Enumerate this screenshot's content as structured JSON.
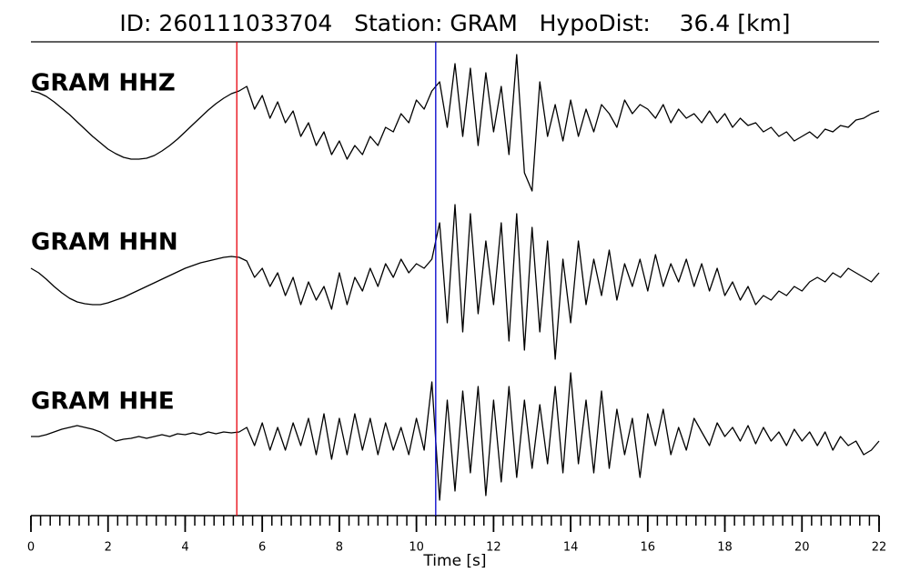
{
  "chart_data": {
    "type": "line",
    "title": "ID: 260111033704   Station: GRAM   HypoDist:    36.4 [km]",
    "x_label": "Time [s]",
    "xlim": [
      0,
      22
    ],
    "xticks": [
      0,
      2,
      4,
      6,
      8,
      10,
      12,
      14,
      16,
      18,
      20,
      22
    ],
    "xminor_step": 0.25,
    "trace_ylim": [
      -100,
      100
    ],
    "label_color": "#4c9a00",
    "markers": [
      {
        "x": 5.34,
        "color": "#e8000b"
      },
      {
        "x": 10.5,
        "color": "#0000cc"
      }
    ],
    "x": [
      0,
      0.2,
      0.4,
      0.6,
      0.8,
      1,
      1.2,
      1.4,
      1.6,
      1.8,
      2,
      2.2,
      2.4,
      2.6,
      2.8,
      3,
      3.2,
      3.4,
      3.6,
      3.8,
      4,
      4.2,
      4.4,
      4.6,
      4.8,
      5,
      5.2,
      5.4,
      5.6,
      5.8,
      6,
      6.2,
      6.4,
      6.6,
      6.8,
      7,
      7.2,
      7.4,
      7.6,
      7.8,
      8,
      8.2,
      8.4,
      8.6,
      8.8,
      9,
      9.2,
      9.4,
      9.6,
      9.8,
      10,
      10.2,
      10.4,
      10.6,
      10.8,
      11,
      11.2,
      11.4,
      11.6,
      11.8,
      12,
      12.2,
      12.4,
      12.6,
      12.8,
      13,
      13.2,
      13.4,
      13.6,
      13.8,
      14,
      14.2,
      14.4,
      14.6,
      14.8,
      15,
      15.2,
      15.4,
      15.6,
      15.8,
      16,
      16.2,
      16.4,
      16.6,
      16.8,
      17,
      17.2,
      17.4,
      17.6,
      17.8,
      18,
      18.2,
      18.4,
      18.6,
      18.8,
      19,
      19.2,
      19.4,
      19.6,
      19.8,
      20,
      20.2,
      20.4,
      20.6,
      20.8,
      21,
      21.2,
      21.4,
      21.6,
      21.8,
      22
    ],
    "series": [
      {
        "name": "GRAM HHZ",
        "color": "#000000",
        "values": [
          30,
          28,
          24,
          18,
          11,
          4,
          -4,
          -12,
          -20,
          -27,
          -34,
          -39,
          -43,
          -45,
          -45,
          -44,
          -41,
          -36,
          -30,
          -23,
          -15,
          -7,
          1,
          9,
          16,
          22,
          27,
          30,
          35,
          10,
          25,
          0,
          18,
          -5,
          8,
          -20,
          -5,
          -30,
          -15,
          -40,
          -25,
          -45,
          -30,
          -40,
          -20,
          -30,
          -10,
          -15,
          5,
          -5,
          20,
          10,
          30,
          40,
          -10,
          60,
          -20,
          55,
          -30,
          50,
          -15,
          35,
          -40,
          70,
          -60,
          -80,
          40,
          -20,
          15,
          -25,
          20,
          -20,
          10,
          -15,
          15,
          5,
          -10,
          20,
          5,
          15,
          10,
          0,
          15,
          -5,
          10,
          0,
          5,
          -5,
          8,
          -5,
          5,
          -10,
          0,
          -8,
          -5,
          -15,
          -10,
          -20,
          -15,
          -25,
          -20,
          -15,
          -22,
          -12,
          -15,
          -8,
          -10,
          -2,
          0,
          5,
          8
        ]
      },
      {
        "name": "GRAM HHN",
        "color": "#000000",
        "values": [
          10,
          5,
          -2,
          -10,
          -17,
          -23,
          -27,
          -29,
          -30,
          -30,
          -28,
          -25,
          -22,
          -18,
          -14,
          -10,
          -6,
          -2,
          2,
          6,
          10,
          13,
          16,
          18,
          20,
          22,
          23,
          22,
          18,
          0,
          10,
          -10,
          5,
          -20,
          0,
          -30,
          -5,
          -25,
          -10,
          -35,
          5,
          -30,
          0,
          -15,
          10,
          -10,
          15,
          0,
          20,
          5,
          15,
          10,
          20,
          60,
          -50,
          80,
          -60,
          70,
          -40,
          40,
          -30,
          60,
          -70,
          70,
          -80,
          55,
          -60,
          40,
          -90,
          20,
          -50,
          40,
          -30,
          20,
          -20,
          30,
          -25,
          15,
          -10,
          20,
          -15,
          25,
          -10,
          15,
          -5,
          20,
          -10,
          15,
          -15,
          10,
          -20,
          -5,
          -25,
          -10,
          -30,
          -20,
          -25,
          -15,
          -20,
          -10,
          -15,
          -5,
          0,
          -5,
          5,
          0,
          10,
          5,
          0,
          -5,
          5
        ]
      },
      {
        "name": "GRAM HHE",
        "color": "#000000",
        "values": [
          0,
          0,
          2,
          5,
          8,
          10,
          12,
          10,
          8,
          5,
          0,
          -5,
          -3,
          -2,
          0,
          -2,
          0,
          2,
          0,
          3,
          2,
          4,
          2,
          5,
          3,
          5,
          4,
          5,
          10,
          -10,
          15,
          -15,
          10,
          -15,
          15,
          -10,
          20,
          -20,
          25,
          -25,
          20,
          -20,
          25,
          -15,
          20,
          -20,
          15,
          -15,
          10,
          -20,
          20,
          -15,
          60,
          -70,
          40,
          -60,
          50,
          -40,
          55,
          -65,
          40,
          -50,
          55,
          -45,
          40,
          -35,
          35,
          -30,
          55,
          -40,
          70,
          -30,
          40,
          -40,
          50,
          -35,
          30,
          -20,
          20,
          -45,
          25,
          -10,
          30,
          -20,
          10,
          -15,
          20,
          5,
          -10,
          15,
          0,
          10,
          -5,
          12,
          -8,
          10,
          -5,
          5,
          -10,
          8,
          -5,
          5,
          -10,
          5,
          -15,
          0,
          -10,
          -5,
          -20,
          -15,
          -5
        ]
      }
    ]
  }
}
